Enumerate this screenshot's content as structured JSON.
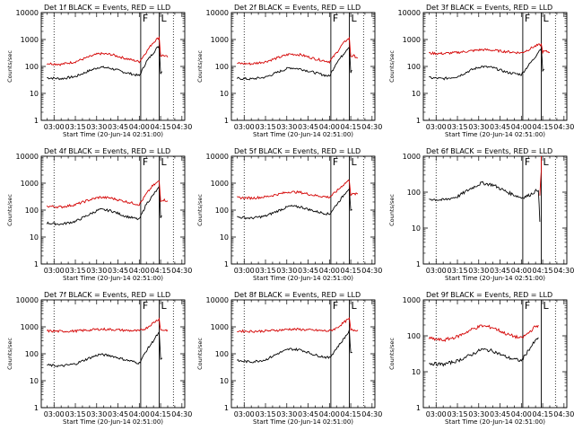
{
  "figure": {
    "colors": {
      "events": "#000000",
      "lld": "#d40000",
      "background": "#ffffff"
    },
    "legend_encoding": "BLACK = Events, RED = LLD"
  },
  "chart_data": [
    {
      "type": "line",
      "title": "Det 1f BLACK = Events, RED = LLD",
      "xlabel": "Start Time (20-Jun-14 02:51:00)",
      "ylabel": "Counts/sec",
      "yscale": "log",
      "ylim": [
        1,
        10000
      ],
      "xticks": [
        "03:00",
        "03:15",
        "03:30",
        "03:45",
        "04:00",
        "04:15",
        "04:30"
      ],
      "yticks": [
        "1",
        "10",
        "100",
        "1000",
        "10000"
      ],
      "xlim": [
        "02:51",
        "04:32"
      ],
      "vlines_dotted": [
        "03:00",
        "04:24"
      ],
      "vlines_solid": [
        "04:01",
        "04:14"
      ],
      "flag_labels": [
        "F",
        "L"
      ],
      "series": [
        {
          "color": "#000000",
          "x": [
            "02:55",
            "03:05",
            "03:15",
            "03:25",
            "03:32",
            "03:40",
            "03:50",
            "04:00",
            "04:05",
            "04:09",
            "04:12",
            "04:14",
            "04:15",
            "04:16"
          ],
          "values": [
            38,
            35,
            42,
            70,
            95,
            85,
            60,
            45,
            150,
            280,
            450,
            600,
            55,
            65
          ]
        },
        {
          "color": "#d40000",
          "x": [
            "02:55",
            "03:05",
            "03:15",
            "03:25",
            "03:32",
            "03:40",
            "03:50",
            "04:00",
            "04:05",
            "04:09",
            "04:12",
            "04:14",
            "04:15",
            "04:17",
            "04:20"
          ],
          "values": [
            130,
            120,
            150,
            230,
            300,
            280,
            200,
            150,
            350,
            700,
            1000,
            1200,
            250,
            260,
            220
          ]
        }
      ]
    },
    {
      "type": "line",
      "title": "Det 2f BLACK = Events, RED = LLD",
      "xlabel": "Start Time (20-Jun-14 02:51:00)",
      "ylabel": "Counts/sec",
      "yscale": "log",
      "ylim": [
        1,
        10000
      ],
      "xticks": [
        "03:00",
        "03:15",
        "03:30",
        "03:45",
        "04:00",
        "04:15",
        "04:30"
      ],
      "yticks": [
        "1",
        "10",
        "100",
        "1000",
        "10000"
      ],
      "xlim": [
        "02:51",
        "04:32"
      ],
      "vlines_dotted": [
        "03:00",
        "04:24"
      ],
      "vlines_solid": [
        "04:01",
        "04:14"
      ],
      "flag_labels": [
        "F",
        "L"
      ],
      "series": [
        {
          "color": "#000000",
          "x": [
            "02:55",
            "03:05",
            "03:15",
            "03:25",
            "03:32",
            "03:40",
            "03:50",
            "04:00",
            "04:05",
            "04:09",
            "04:12",
            "04:14",
            "04:15",
            "04:16"
          ],
          "values": [
            36,
            34,
            40,
            65,
            90,
            80,
            58,
            43,
            140,
            250,
            420,
            550,
            60,
            70
          ]
        },
        {
          "color": "#d40000",
          "x": [
            "02:55",
            "03:05",
            "03:15",
            "03:25",
            "03:32",
            "03:40",
            "03:50",
            "04:00",
            "04:05",
            "04:09",
            "04:12",
            "04:14",
            "04:15",
            "04:17",
            "04:20"
          ],
          "values": [
            130,
            125,
            150,
            220,
            290,
            270,
            190,
            150,
            320,
            650,
            950,
            1100,
            240,
            250,
            210
          ]
        }
      ]
    },
    {
      "type": "line",
      "title": "Det 3f BLACK = Events, RED = LLD",
      "xlabel": "Start Time (20-Jun-14 02:51:00)",
      "ylabel": "Counts/sec",
      "yscale": "log",
      "ylim": [
        1,
        10000
      ],
      "xticks": [
        "03:00",
        "03:15",
        "03:30",
        "03:45",
        "04:00",
        "04:15",
        "04:30"
      ],
      "yticks": [
        "1",
        "10",
        "100",
        "1000",
        "10000"
      ],
      "xlim": [
        "02:51",
        "04:32"
      ],
      "vlines_dotted": [
        "03:00",
        "04:24"
      ],
      "vlines_solid": [
        "04:01",
        "04:14"
      ],
      "flag_labels": [
        "F",
        "L"
      ],
      "series": [
        {
          "color": "#000000",
          "x": [
            "02:55",
            "03:05",
            "03:15",
            "03:25",
            "03:32",
            "03:40",
            "03:50",
            "04:00",
            "04:05",
            "04:09",
            "04:12",
            "04:14",
            "04:15",
            "04:16"
          ],
          "values": [
            38,
            35,
            42,
            75,
            100,
            90,
            60,
            50,
            110,
            200,
            350,
            500,
            70,
            80
          ]
        },
        {
          "color": "#d40000",
          "x": [
            "02:55",
            "03:05",
            "03:15",
            "03:25",
            "03:32",
            "03:40",
            "03:50",
            "04:00",
            "04:05",
            "04:09",
            "04:12",
            "04:14",
            "04:15",
            "04:17",
            "04:20"
          ],
          "values": [
            310,
            300,
            330,
            380,
            420,
            400,
            350,
            320,
            420,
            550,
            620,
            650,
            350,
            360,
            340
          ]
        }
      ]
    },
    {
      "type": "line",
      "title": "Det 4f BLACK = Events, RED = LLD",
      "xlabel": "Start Time (20-Jun-14 02:51:00)",
      "ylabel": "Counts/sec",
      "yscale": "log",
      "ylim": [
        1,
        10000
      ],
      "xticks": [
        "03:00",
        "03:15",
        "03:30",
        "03:45",
        "04:00",
        "04:15",
        "04:30"
      ],
      "yticks": [
        "1",
        "10",
        "100",
        "1000",
        "10000"
      ],
      "xlim": [
        "02:51",
        "04:32"
      ],
      "vlines_dotted": [
        "03:00",
        "04:24"
      ],
      "vlines_solid": [
        "04:01",
        "04:14"
      ],
      "flag_labels": [
        "F",
        "L"
      ],
      "series": [
        {
          "color": "#000000",
          "x": [
            "02:55",
            "03:05",
            "03:15",
            "03:25",
            "03:32",
            "03:40",
            "03:50",
            "04:00",
            "04:05",
            "04:09",
            "04:12",
            "04:14",
            "04:15",
            "04:16"
          ],
          "values": [
            33,
            30,
            38,
            70,
            105,
            95,
            60,
            45,
            170,
            320,
            520,
            700,
            55,
            60
          ]
        },
        {
          "color": "#d40000",
          "x": [
            "02:55",
            "03:05",
            "03:15",
            "03:25",
            "03:32",
            "03:40",
            "03:50",
            "04:00",
            "04:05",
            "04:09",
            "04:12",
            "04:14",
            "04:15",
            "04:17",
            "04:20"
          ],
          "values": [
            140,
            130,
            160,
            240,
            300,
            280,
            210,
            160,
            400,
            750,
            1000,
            1200,
            230,
            240,
            220
          ]
        }
      ]
    },
    {
      "type": "line",
      "title": "Det 5f BLACK = Events, RED = LLD",
      "xlabel": "Start Time (20-Jun-14 02:51:00)",
      "ylabel": "Counts/sec",
      "yscale": "log",
      "ylim": [
        1,
        10000
      ],
      "xticks": [
        "03:00",
        "03:15",
        "03:30",
        "03:45",
        "04:00",
        "04:15",
        "04:30"
      ],
      "yticks": [
        "1",
        "10",
        "100",
        "1000",
        "10000"
      ],
      "xlim": [
        "02:51",
        "04:32"
      ],
      "vlines_dotted": [
        "03:00",
        "04:24"
      ],
      "vlines_solid": [
        "04:01",
        "04:14"
      ],
      "flag_labels": [
        "F",
        "L"
      ],
      "series": [
        {
          "color": "#000000",
          "x": [
            "02:55",
            "03:05",
            "03:15",
            "03:25",
            "03:32",
            "03:40",
            "03:50",
            "04:00",
            "04:05",
            "04:09",
            "04:12",
            "04:14",
            "04:15",
            "04:16"
          ],
          "values": [
            55,
            50,
            60,
            100,
            140,
            130,
            90,
            70,
            160,
            300,
            500,
            650,
            90,
            100
          ]
        },
        {
          "color": "#d40000",
          "x": [
            "02:55",
            "03:05",
            "03:15",
            "03:25",
            "03:32",
            "03:40",
            "03:50",
            "04:00",
            "04:05",
            "04:09",
            "04:12",
            "04:14",
            "04:15",
            "04:17",
            "04:20"
          ],
          "values": [
            290,
            280,
            310,
            400,
            480,
            450,
            350,
            300,
            500,
            800,
            1100,
            1300,
            380,
            390,
            400
          ]
        }
      ]
    },
    {
      "type": "line",
      "title": "Det 6f BLACK = Events, RED = LLD",
      "xlabel": "Start Time (20-Jun-14 02:51:00)",
      "ylabel": "Counts/sec",
      "yscale": "log",
      "ylim": [
        1,
        1000
      ],
      "xticks": [
        "03:00",
        "03:15",
        "03:30",
        "03:45",
        "04:00",
        "04:15",
        "04:30"
      ],
      "yticks": [
        "1",
        "10",
        "100",
        "1000"
      ],
      "xlim": [
        "02:51",
        "04:32"
      ],
      "vlines_dotted": [
        "03:00",
        "04:24"
      ],
      "vlines_solid": [
        "04:01",
        "04:14"
      ],
      "flag_labels": [
        "F",
        "L"
      ],
      "series": [
        {
          "color": "#000000",
          "x": [
            "02:55",
            "03:05",
            "03:15",
            "03:25",
            "03:32",
            "03:40",
            "03:50",
            "04:00",
            "04:05",
            "04:09",
            "04:12",
            "04:13"
          ],
          "values": [
            65,
            60,
            75,
            130,
            180,
            160,
            100,
            70,
            80,
            100,
            120,
            15
          ]
        },
        {
          "color": "#d40000",
          "x": [
            "04:13",
            "04:14",
            "04:14"
          ],
          "values": [
            80,
            400,
            1000
          ]
        }
      ]
    },
    {
      "type": "line",
      "title": "Det 7f BLACK = Events, RED = LLD",
      "xlabel": "Start Time (20-Jun-14 02:51:00)",
      "ylabel": "Counts/sec",
      "yscale": "log",
      "ylim": [
        1,
        10000
      ],
      "xticks": [
        "03:00",
        "03:15",
        "03:30",
        "03:45",
        "04:00",
        "04:15",
        "04:30"
      ],
      "yticks": [
        "1",
        "10",
        "100",
        "1000",
        "10000"
      ],
      "xlim": [
        "02:51",
        "04:32"
      ],
      "vlines_dotted": [
        "03:00",
        "04:24"
      ],
      "vlines_solid": [
        "04:01",
        "04:14"
      ],
      "flag_labels": [
        "F",
        "L"
      ],
      "series": [
        {
          "color": "#000000",
          "x": [
            "02:55",
            "03:05",
            "03:15",
            "03:25",
            "03:32",
            "03:40",
            "03:50",
            "04:00",
            "04:05",
            "04:09",
            "04:12",
            "04:14",
            "04:15",
            "04:16"
          ],
          "values": [
            38,
            35,
            42,
            70,
            95,
            85,
            60,
            45,
            130,
            260,
            450,
            600,
            60,
            70
          ]
        },
        {
          "color": "#d40000",
          "x": [
            "02:55",
            "03:05",
            "03:15",
            "03:25",
            "03:32",
            "03:40",
            "03:50",
            "04:00",
            "04:05",
            "04:09",
            "04:12",
            "04:14",
            "04:15",
            "04:17",
            "04:20"
          ],
          "values": [
            700,
            680,
            700,
            760,
            820,
            800,
            740,
            700,
            900,
            1300,
            1700,
            2000,
            760,
            760,
            760
          ]
        }
      ]
    },
    {
      "type": "line",
      "title": "Det 8f BLACK = Events, RED = LLD",
      "xlabel": "Start Time (20-Jun-14 02:51:00)",
      "ylabel": "Counts/sec",
      "yscale": "log",
      "ylim": [
        1,
        10000
      ],
      "xticks": [
        "03:00",
        "03:15",
        "03:30",
        "03:45",
        "04:00",
        "04:15",
        "04:30"
      ],
      "yticks": [
        "1",
        "10",
        "100",
        "1000",
        "10000"
      ],
      "xlim": [
        "02:51",
        "04:32"
      ],
      "vlines_dotted": [
        "03:00",
        "04:24"
      ],
      "vlines_solid": [
        "04:01",
        "04:14"
      ],
      "flag_labels": [
        "F",
        "L"
      ],
      "series": [
        {
          "color": "#000000",
          "x": [
            "02:55",
            "03:05",
            "03:15",
            "03:25",
            "03:32",
            "03:40",
            "03:50",
            "04:00",
            "04:05",
            "04:09",
            "04:12",
            "04:14",
            "04:15",
            "04:16"
          ],
          "values": [
            55,
            50,
            60,
            110,
            150,
            140,
            90,
            70,
            160,
            300,
            500,
            700,
            100,
            110
          ]
        },
        {
          "color": "#d40000",
          "x": [
            "02:55",
            "03:05",
            "03:15",
            "03:25",
            "03:32",
            "03:40",
            "03:50",
            "04:00",
            "04:05",
            "04:09",
            "04:12",
            "04:14",
            "04:15",
            "04:17",
            "04:20"
          ],
          "values": [
            700,
            680,
            700,
            760,
            820,
            800,
            740,
            700,
            900,
            1300,
            1700,
            2000,
            760,
            760,
            760
          ]
        }
      ]
    },
    {
      "type": "line",
      "title": "Det 9f BLACK = Events, RED = LLD",
      "xlabel": "Start Time (20-Jun-14 02:51:00)",
      "ylabel": "Counts/sec",
      "yscale": "log",
      "ylim": [
        1,
        1000
      ],
      "xticks": [
        "03:00",
        "03:15",
        "03:30",
        "03:45",
        "04:00",
        "04:15",
        "04:30"
      ],
      "yticks": [
        "1",
        "10",
        "100",
        "1000"
      ],
      "xlim": [
        "02:51",
        "04:32"
      ],
      "vlines_dotted": [
        "03:00",
        "04:24"
      ],
      "vlines_solid": [
        "04:01",
        "04:14"
      ],
      "flag_labels": [
        "F",
        "L"
      ],
      "series": [
        {
          "color": "#000000",
          "x": [
            "02:55",
            "03:05",
            "03:15",
            "03:25",
            "03:32",
            "03:40",
            "03:50",
            "04:00",
            "04:05",
            "04:09",
            "04:12"
          ],
          "values": [
            17,
            16,
            20,
            30,
            42,
            38,
            25,
            20,
            40,
            65,
            90
          ]
        },
        {
          "color": "#d40000",
          "x": [
            "02:55",
            "03:05",
            "03:15",
            "03:25",
            "03:32",
            "03:40",
            "03:50",
            "04:00",
            "04:05",
            "04:09",
            "04:12"
          ],
          "values": [
            85,
            75,
            95,
            150,
            190,
            170,
            110,
            85,
            120,
            170,
            200
          ]
        }
      ]
    }
  ]
}
